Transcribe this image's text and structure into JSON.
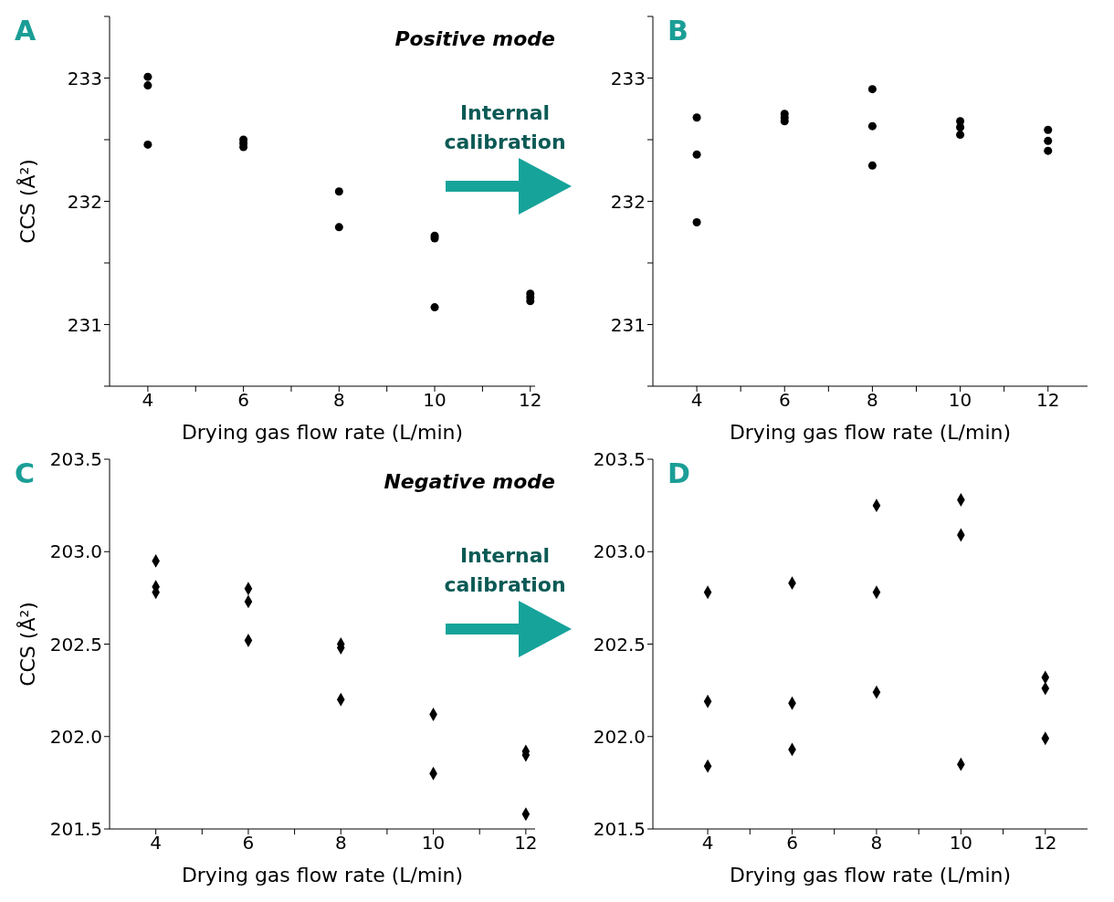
{
  "chart_data": [
    {
      "type": "scatter",
      "ylabel": "CCS (Å²)",
      "xlabel": "Drying gas flow rate (L/min)",
      "annotations": [
        "A",
        "Positive mode",
        "Internal calibration"
      ],
      "marker": "circle",
      "grid": false,
      "legend": false,
      "xlim": [
        3.2,
        12.1
      ],
      "ylim": [
        230.5,
        233.5
      ],
      "xticks": [
        4,
        {
          "value": 5,
          "label": null
        },
        6,
        {
          "value": 7,
          "label": null
        },
        8,
        {
          "value": 9,
          "label": null
        },
        10,
        {
          "value": 11,
          "label": null
        },
        12
      ],
      "yticks": [
        {
          "value": 230.5,
          "label": null
        },
        231,
        {
          "value": 231.5,
          "label": null
        },
        232,
        {
          "value": 232.5,
          "label": null
        },
        233,
        {
          "value": 233.5,
          "label": null
        }
      ],
      "series": [
        {
          "color": "#000000",
          "x": [
            4,
            4,
            4,
            6,
            6,
            6,
            8,
            8,
            10,
            10,
            10,
            12,
            12,
            12
          ],
          "values": [
            233.01,
            232.94,
            232.46,
            232.5,
            232.47,
            232.44,
            232.08,
            231.79,
            231.72,
            231.7,
            231.14,
            231.25,
            231.22,
            231.19
          ]
        }
      ]
    },
    {
      "type": "scatter",
      "xlabel": "Drying gas flow rate (L/min)",
      "annotations": [
        "B"
      ],
      "marker": "circle",
      "grid": false,
      "legend": false,
      "xlim": [
        3,
        12.9
      ],
      "ylim": [
        230.5,
        233.5
      ],
      "xticks": [
        4,
        {
          "value": 5,
          "label": null
        },
        6,
        {
          "value": 7,
          "label": null
        },
        8,
        {
          "value": 9,
          "label": null
        },
        10,
        {
          "value": 11,
          "label": null
        },
        12
      ],
      "yticks": [
        {
          "value": 230.5,
          "label": null
        },
        231,
        {
          "value": 231.5,
          "label": null
        },
        232,
        {
          "value": 232.5,
          "label": null
        },
        233,
        {
          "value": 233.5,
          "label": null
        }
      ],
      "series": [
        {
          "color": "#000000",
          "x": [
            4,
            4,
            4,
            6,
            6,
            6,
            8,
            8,
            8,
            10,
            10,
            10,
            12,
            12,
            12
          ],
          "values": [
            232.68,
            232.38,
            231.83,
            232.71,
            232.68,
            232.65,
            232.91,
            232.61,
            232.29,
            232.65,
            232.6,
            232.54,
            232.58,
            232.49,
            232.41
          ]
        }
      ]
    },
    {
      "type": "scatter",
      "ylabel": "CCS (Å²)",
      "xlabel": "Drying gas flow rate (L/min)",
      "annotations": [
        "C",
        "Negative mode",
        "Internal calibration"
      ],
      "marker": "diamond",
      "grid": false,
      "legend": false,
      "xlim": [
        3,
        12.2
      ],
      "ylim": [
        201.5,
        203.5
      ],
      "xticks": [
        4,
        {
          "value": 5,
          "label": null
        },
        6,
        {
          "value": 7,
          "label": null
        },
        8,
        {
          "value": 9,
          "label": null
        },
        10,
        {
          "value": 11,
          "label": null
        },
        12
      ],
      "yticks": [
        {
          "value": 201.5,
          "label": "201.5"
        },
        {
          "value": 202,
          "label": "202.0"
        },
        {
          "value": 202.5,
          "label": "202.5"
        },
        {
          "value": 203,
          "label": "203.0"
        },
        {
          "value": 203.5,
          "label": "203.5"
        }
      ],
      "series": [
        {
          "color": "#000000",
          "x": [
            4,
            4,
            4,
            6,
            6,
            6,
            8,
            8,
            8,
            10,
            10,
            12,
            12,
            12
          ],
          "values": [
            202.95,
            202.81,
            202.78,
            202.8,
            202.73,
            202.52,
            202.5,
            202.48,
            202.2,
            202.12,
            201.8,
            201.92,
            201.9,
            201.58
          ]
        }
      ]
    },
    {
      "type": "scatter",
      "xlabel": "Drying gas flow rate (L/min)",
      "annotations": [
        "D"
      ],
      "marker": "diamond",
      "grid": false,
      "legend": false,
      "xlim": [
        2.7,
        13
      ],
      "ylim": [
        201.5,
        203.5
      ],
      "xticks": [
        4,
        {
          "value": 5,
          "label": null
        },
        6,
        {
          "value": 7,
          "label": null
        },
        8,
        {
          "value": 9,
          "label": null
        },
        10,
        {
          "value": 11,
          "label": null
        },
        12
      ],
      "yticks": [
        {
          "value": 201.5,
          "label": "201.5"
        },
        {
          "value": 202,
          "label": "202.0"
        },
        {
          "value": 202.5,
          "label": "202.5"
        },
        {
          "value": 203,
          "label": "203.0"
        },
        {
          "value": 203.5,
          "label": "203.5"
        }
      ],
      "series": [
        {
          "color": "#000000",
          "x": [
            4,
            4,
            4,
            6,
            6,
            6,
            8,
            8,
            8,
            10,
            10,
            10,
            12,
            12,
            12
          ],
          "values": [
            202.78,
            202.19,
            201.84,
            202.83,
            202.18,
            201.93,
            203.25,
            202.78,
            202.24,
            203.28,
            203.09,
            201.85,
            202.32,
            202.26,
            201.99
          ]
        }
      ]
    }
  ]
}
